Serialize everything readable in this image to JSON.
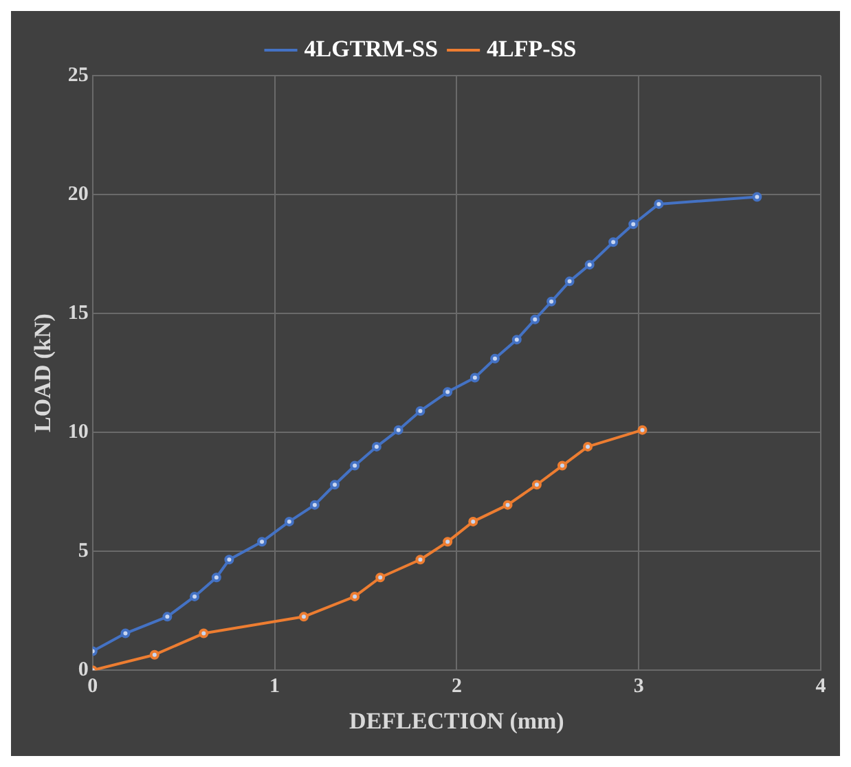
{
  "chart_data": {
    "type": "line",
    "xlabel": "DEFLECTION (mm)",
    "ylabel": "LOAD (kN)",
    "xlim": [
      0,
      4
    ],
    "xticks": [
      0,
      1,
      2,
      3,
      4
    ],
    "ylim": [
      0,
      25
    ],
    "yticks": [
      0,
      5,
      10,
      15,
      20,
      25
    ],
    "grid": true,
    "legend": "top",
    "marker": "circle",
    "line_style": "solid",
    "series": [
      {
        "name": "4LGTRM-SS",
        "color": "#4472c4",
        "x": [
          0,
          0.18,
          0.41,
          0.56,
          0.68,
          0.75,
          0.93,
          1.08,
          1.22,
          1.33,
          1.44,
          1.56,
          1.68,
          1.8,
          1.95,
          2.1,
          2.21,
          2.33,
          2.43,
          2.52,
          2.62,
          2.73,
          2.86,
          2.97,
          3.11,
          3.65
        ],
        "values": [
          0.8,
          1.55,
          2.25,
          3.1,
          3.9,
          4.65,
          5.4,
          6.25,
          6.95,
          7.8,
          8.6,
          9.4,
          10.1,
          10.9,
          11.7,
          12.3,
          13.1,
          13.9,
          14.75,
          15.5,
          16.35,
          17.05,
          18.0,
          18.75,
          19.6,
          19.9
        ]
      },
      {
        "name": "4LFP-SS",
        "color": "#ed7d31",
        "x": [
          0,
          0.34,
          0.61,
          1.16,
          1.44,
          1.58,
          1.8,
          1.95,
          2.09,
          2.28,
          2.44,
          2.58,
          2.72,
          3.02
        ],
        "values": [
          0,
          0.65,
          1.55,
          2.25,
          3.1,
          3.9,
          4.65,
          5.4,
          6.25,
          6.95,
          7.8,
          8.6,
          9.4,
          10.1
        ]
      }
    ]
  }
}
